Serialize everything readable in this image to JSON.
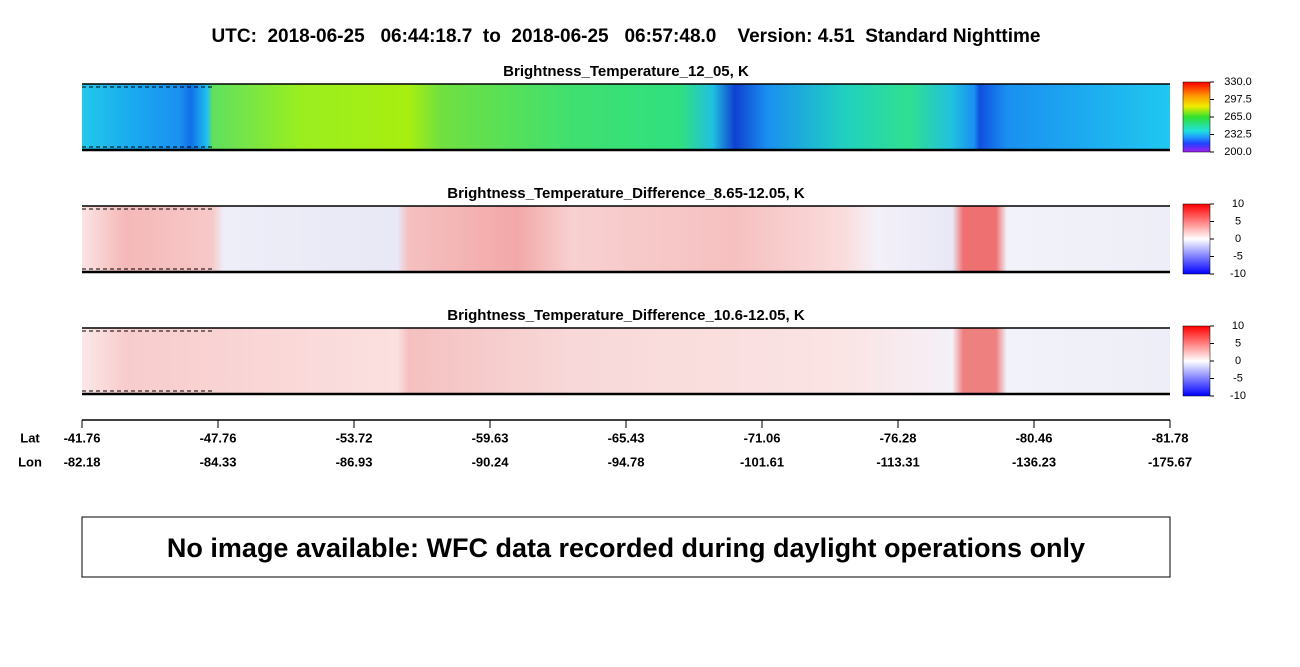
{
  "title": "UTC:  2018-06-25   06:44:18.7  to  2018-06-25   06:57:48.0    Version: 4.51  Standard Nighttime",
  "panels": [
    {
      "title": "Brightness_Temperature_12_05, K",
      "colorbar_ticks": [
        "330.0",
        "297.5",
        "265.0",
        "232.5",
        "200.0"
      ]
    },
    {
      "title": "Brightness_Temperature_Difference_8.65-12.05, K",
      "colorbar_ticks": [
        "10",
        "5",
        "0",
        "-5",
        "-10"
      ]
    },
    {
      "title": "Brightness_Temperature_Difference_10.6-12.05, K",
      "colorbar_ticks": [
        "10",
        "5",
        "0",
        "-5",
        "-10"
      ]
    }
  ],
  "axis": {
    "row_labels": [
      "Lat",
      "Lon"
    ],
    "lat": [
      "-41.76",
      "-47.76",
      "-53.72",
      "-59.63",
      "-65.43",
      "-71.06",
      "-76.28",
      "-80.46",
      "-81.78"
    ],
    "lon": [
      "-82.18",
      "-84.33",
      "-86.93",
      "-90.24",
      "-94.78",
      "-101.61",
      "-113.31",
      "-136.23",
      "-175.67"
    ]
  },
  "message": "No image available: WFC data recorded during daylight operations only"
}
